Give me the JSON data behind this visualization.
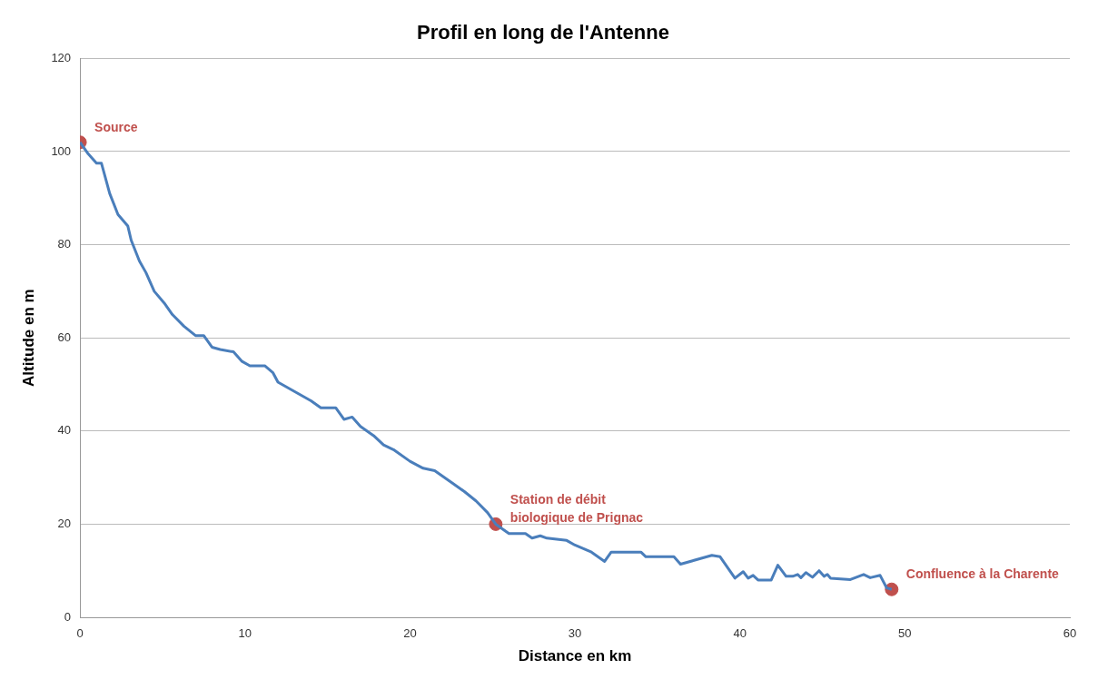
{
  "chart_data": {
    "type": "line",
    "title": "Profil en long de l'Antenne",
    "xlabel": "Distance en km",
    "ylabel": "Altitude en m",
    "xlim": [
      0,
      60
    ],
    "xticks": [
      0,
      10,
      20,
      30,
      40,
      50,
      60
    ],
    "ylim": [
      0,
      120
    ],
    "yticks": [
      0,
      20,
      40,
      60,
      80,
      100,
      120
    ],
    "grid": "y",
    "legend": false,
    "series": [
      {
        "color": "#4a7ebb",
        "marker": "none",
        "line_style": "solid",
        "x": [
          0,
          0.5,
          1,
          1.3,
          1.8,
          2.3,
          2.9,
          3.1,
          3.6,
          4,
          4.5,
          5.1,
          5.6,
          6.3,
          7,
          7.5,
          8,
          8.5,
          9.3,
          9.8,
          10.3,
          11.2,
          11.7,
          12,
          13,
          14,
          14.6,
          15.5,
          16,
          16.5,
          17,
          17.8,
          18.4,
          19,
          20,
          20.8,
          21.5,
          22.5,
          23.3,
          24,
          24.7,
          25.2,
          26,
          27,
          27.4,
          27.9,
          28.3,
          29.5,
          30,
          31,
          31.8,
          32.2,
          34,
          34.3,
          36,
          36.4,
          38.3,
          38.8,
          39.7,
          40.2,
          40.5,
          40.8,
          41.1,
          41.9,
          42.3,
          42.8,
          43.2,
          43.5,
          43.7,
          44,
          44.4,
          44.8,
          45.1,
          45.3,
          45.5,
          46.7,
          47.5,
          47.9,
          48.5,
          48.9,
          49.2
        ],
        "values": [
          102,
          99.5,
          97.5,
          97.5,
          91,
          86.5,
          84,
          81,
          76.5,
          74,
          70,
          67.5,
          65,
          62.5,
          60.5,
          60.5,
          58,
          57.5,
          57,
          55,
          54,
          54,
          52.5,
          50.5,
          48.5,
          46.5,
          45,
          45,
          42.5,
          43,
          41,
          39,
          37,
          36,
          33.5,
          32,
          31.5,
          29,
          27,
          25,
          22.5,
          20,
          18,
          18,
          17,
          17.5,
          17,
          16.5,
          15.5,
          14,
          12,
          14,
          14,
          13,
          13,
          11.4,
          13.3,
          13,
          8.4,
          9.8,
          8.4,
          9,
          8,
          8,
          11.2,
          8.8,
          8.8,
          9.2,
          8.5,
          9.6,
          8.6,
          10,
          8.8,
          9.2,
          8.4,
          8.1,
          9.2,
          8.5,
          9,
          6.3,
          6
        ]
      },
      {
        "type": "scatter",
        "color": "#c0504d",
        "marker": "circle",
        "x": [
          0,
          25.2,
          49.2
        ],
        "values": [
          102,
          20,
          6
        ]
      }
    ],
    "annotations": [
      {
        "text": "Source",
        "x": 0,
        "y": 102
      },
      {
        "text": "Station de débit\nbiologique de Prignac",
        "x": 25.2,
        "y": 20
      },
      {
        "text": "Confluence à la Charente",
        "x": 49.2,
        "y": 6
      }
    ]
  }
}
